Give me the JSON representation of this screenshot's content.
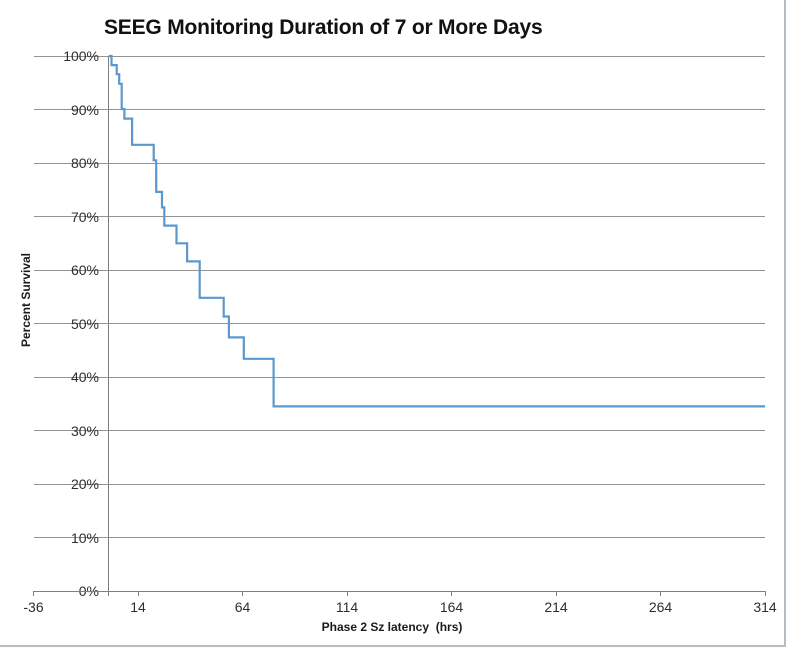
{
  "chart_data": {
    "type": "line",
    "subtype": "kaplan-meier-step",
    "title": "SEEG Monitoring Duration of 7 or More Days",
    "xlabel": "Phase 2 Sz latency  (hrs)",
    "ylabel": "Percent Survival",
    "xlim": [
      -36,
      314
    ],
    "ylim": [
      0,
      100
    ],
    "x_ticks": [
      -36,
      14,
      64,
      114,
      164,
      214,
      264,
      314
    ],
    "y_ticks": [
      {
        "value": 0,
        "label": "0%"
      },
      {
        "value": 10,
        "label": "10%"
      },
      {
        "value": 20,
        "label": "20%"
      },
      {
        "value": 30,
        "label": "30%"
      },
      {
        "value": 40,
        "label": "40%"
      },
      {
        "value": 50,
        "label": "50%"
      },
      {
        "value": 60,
        "label": "60%"
      },
      {
        "value": 70,
        "label": "70%"
      },
      {
        "value": 80,
        "label": "80%"
      },
      {
        "value": 90,
        "label": "90%"
      },
      {
        "value": 100,
        "label": "100%"
      }
    ],
    "grid": true,
    "legend": "none",
    "line_color": "#5b98cd",
    "axis_cross_x": 0,
    "series_name": "Percent Survival",
    "steps": [
      [
        0,
        100.0
      ],
      [
        1.3,
        98.3
      ],
      [
        3.8,
        96.6
      ],
      [
        5.0,
        94.8
      ],
      [
        6.2,
        90.1
      ],
      [
        7.5,
        88.3
      ],
      [
        11.2,
        83.4
      ],
      [
        21.5,
        80.5
      ],
      [
        22.7,
        74.6
      ],
      [
        25.5,
        71.7
      ],
      [
        26.6,
        68.3
      ],
      [
        32.4,
        65.0
      ],
      [
        37.5,
        61.6
      ],
      [
        43.5,
        54.8
      ],
      [
        55.0,
        51.3
      ],
      [
        57.5,
        47.4
      ],
      [
        64.6,
        43.4
      ],
      [
        78.9,
        34.5
      ],
      [
        314,
        34.5
      ]
    ]
  }
}
